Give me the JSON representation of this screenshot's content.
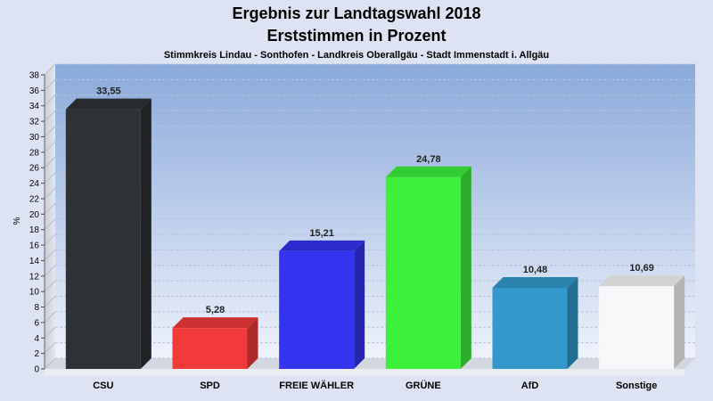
{
  "chart_data": {
    "type": "bar",
    "title": "Ergebnis zur Landtagswahl 2018",
    "subtitle": "Erststimmen in Prozent",
    "subsubtitle": "Stimmkreis Lindau - Sonthofen - Landkreis Oberallgäu - Stadt Immenstadt i. Allgäu",
    "ylabel": "%",
    "xlabel": "",
    "ylim": [
      0,
      38
    ],
    "ytick_step": 2,
    "grid": true,
    "categories": [
      "CSU",
      "SPD",
      "FREIE WÄHLER",
      "GRÜNE",
      "AfD",
      "Sonstige"
    ],
    "values": [
      33.55,
      5.28,
      15.21,
      24.78,
      10.48,
      10.69
    ],
    "value_labels": [
      "33,55",
      "5,28",
      "15,21",
      "24,78",
      "10,48",
      "10,69"
    ],
    "colors": [
      "#2e3136",
      "#f23a3a",
      "#3333f0",
      "#3cf03c",
      "#3399cc",
      "#f8f8fa"
    ]
  }
}
